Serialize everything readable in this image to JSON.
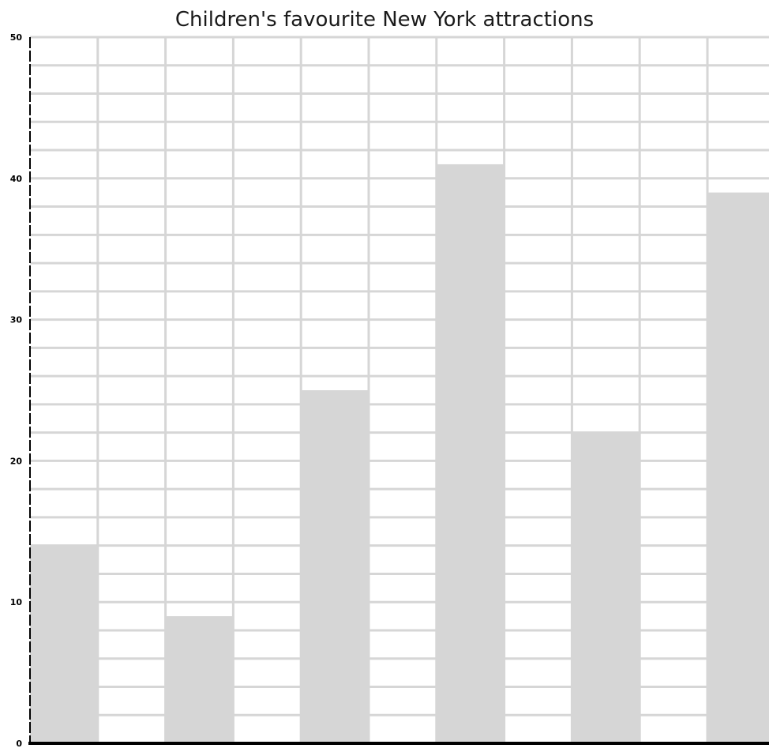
{
  "chart_data": {
    "type": "bar",
    "title": "Children's favourite New York attractions",
    "xlabel": "",
    "ylabel": "",
    "ylim": [
      0,
      50
    ],
    "yticks": [
      "0",
      "10",
      "20",
      "30",
      "40",
      "50"
    ],
    "y_tick_step": 10,
    "y_grid_step": 2,
    "grid": true,
    "bar_color": "#d6d6d6",
    "grid_color": "#d6d6d6",
    "values": [
      14,
      0,
      9,
      0,
      25,
      0,
      41,
      0,
      22,
      0,
      39
    ]
  }
}
